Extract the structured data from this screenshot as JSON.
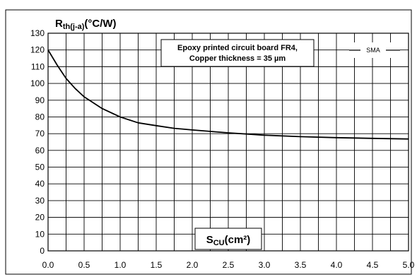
{
  "chart_data": {
    "type": "line",
    "title": "",
    "ylabel": {
      "main": "R",
      "sub": "th(j-a)",
      "rest": "(°C/W)"
    },
    "xlabel": {
      "main": "S",
      "sub": "CU",
      "rest": "(cm²)"
    },
    "xlim": [
      0,
      5
    ],
    "ylim": [
      0,
      130
    ],
    "x_ticks": [
      "0.0",
      "0.5",
      "1.0",
      "1.5",
      "2.0",
      "2.5",
      "3.0",
      "3.5",
      "4.0",
      "4.5",
      "5.0"
    ],
    "y_ticks": [
      "0",
      "10",
      "20",
      "30",
      "40",
      "50",
      "60",
      "70",
      "80",
      "90",
      "100",
      "110",
      "120",
      "130"
    ],
    "grid": true,
    "annotation": [
      "Epoxy printed circuit board FR4,",
      "Copper thickness = 35 µm"
    ],
    "series": [
      {
        "name": "SMA",
        "x": [
          0,
          0.125,
          0.25,
          0.375,
          0.5,
          0.75,
          1.0,
          1.25,
          1.5,
          1.75,
          2.0,
          2.5,
          3.0,
          3.5,
          4.0,
          4.5,
          5.0
        ],
        "values": [
          120,
          111,
          103,
          97,
          92,
          85,
          80,
          76.5,
          74.8,
          73.2,
          72.2,
          70.5,
          69.1,
          68.2,
          67.6,
          67.2,
          66.8
        ]
      }
    ],
    "colors": {
      "line": "#000000",
      "grid": "#000000",
      "background": "#ffffff"
    }
  }
}
